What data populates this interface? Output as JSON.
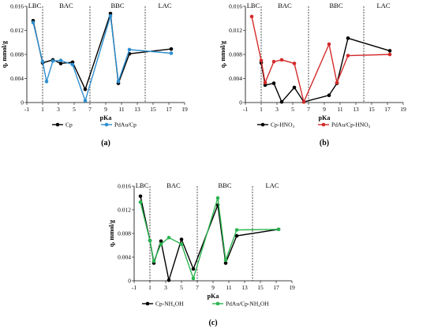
{
  "chart_data": [
    {
      "type": "line",
      "panel_label": "(a)",
      "xlabel": "pKa",
      "ylabel": "q, mmol/g",
      "xlim": [
        -1,
        19
      ],
      "ylim": [
        0,
        0.016
      ],
      "x_ticks": [
        -1,
        1,
        3,
        5,
        7,
        9,
        11,
        13,
        15,
        17,
        19
      ],
      "y_ticks": [
        "0",
        "0.004",
        "0.008",
        "0.012",
        "0.016"
      ],
      "y_tick_values": [
        0,
        0.004,
        0.008,
        0.012,
        0.016
      ],
      "regions": [
        {
          "label": "LBC",
          "x_center": 0
        },
        {
          "label": "BAC",
          "x_center": 4
        },
        {
          "label": "BBC",
          "x_center": 10.5
        },
        {
          "label": "LAC",
          "x_center": 16.5
        }
      ],
      "dividers": [
        1,
        7,
        14
      ],
      "legend_position": "bottom",
      "series": [
        {
          "name": "Cp",
          "color": "#000000",
          "x": [
            -0.2,
            1.0,
            2.3,
            3.3,
            4.8,
            6.4,
            9.6,
            10.6,
            12.0,
            17.3
          ],
          "y": [
            0.0136,
            0.0066,
            0.0071,
            0.0065,
            0.0067,
            0.0022,
            0.0148,
            0.0032,
            0.0081,
            0.0089
          ]
        },
        {
          "name": "PdAu/Cp",
          "color": "#2e8fd0",
          "x": [
            -0.2,
            1.0,
            1.5,
            2.3,
            3.3,
            4.8,
            6.4,
            9.6,
            10.6,
            12.0,
            17.3
          ],
          "y": [
            0.0133,
            0.0068,
            0.0035,
            0.0069,
            0.007,
            0.0063,
            0.0003,
            0.0144,
            0.0035,
            0.0088,
            0.0082
          ]
        }
      ]
    },
    {
      "type": "line",
      "panel_label": "(b)",
      "xlabel": "pKa",
      "ylabel": "q, mmol/g",
      "xlim": [
        -1,
        19
      ],
      "ylim": [
        0,
        0.016
      ],
      "x_ticks": [
        -1,
        1,
        3,
        5,
        7,
        9,
        11,
        13,
        15,
        17,
        19
      ],
      "y_ticks": [
        "0",
        "0.004",
        "0.008",
        "0.012",
        "0.016"
      ],
      "y_tick_values": [
        0,
        0.004,
        0.008,
        0.012,
        0.016
      ],
      "regions": [
        {
          "label": "LBC",
          "x_center": 0
        },
        {
          "label": "BAC",
          "x_center": 4
        },
        {
          "label": "BBC",
          "x_center": 10.5
        },
        {
          "label": "LAC",
          "x_center": 16.5
        }
      ],
      "dividers": [
        1,
        7,
        14
      ],
      "legend_position": "bottom",
      "series": [
        {
          "name": "Cp-HNO₃",
          "color": "#000000",
          "x": [
            1.0,
            1.5,
            2.6,
            3.6,
            5.2,
            6.4,
            9.6,
            10.6,
            12.0,
            17.3
          ],
          "y": [
            0.0066,
            0.0029,
            0.0032,
            0.0001,
            0.0025,
            0.0001,
            0.0012,
            0.0032,
            0.0107,
            0.0086
          ]
        },
        {
          "name": "PdAu/Cp-HNO₃",
          "color": "#d42a2a",
          "x": [
            -0.2,
            1.0,
            1.5,
            2.6,
            3.6,
            5.2,
            6.4,
            9.6,
            10.6,
            12.0,
            17.3
          ],
          "y": [
            0.0143,
            0.007,
            0.0033,
            0.0068,
            0.0071,
            0.0065,
            0.0001,
            0.0097,
            0.0033,
            0.0078,
            0.008
          ]
        }
      ]
    },
    {
      "type": "line",
      "panel_label": "(c)",
      "xlabel": "pKa",
      "ylabel": "q, mmol/g",
      "xlim": [
        -1,
        19
      ],
      "ylim": [
        0,
        0.016
      ],
      "x_ticks": [
        -1,
        1,
        3,
        5,
        7,
        9,
        11,
        13,
        15,
        17,
        19
      ],
      "y_ticks": [
        "0",
        "0.004",
        "0.008",
        "0.012",
        "0.016"
      ],
      "y_tick_values": [
        0,
        0.004,
        0.008,
        0.012,
        0.016
      ],
      "regions": [
        {
          "label": "LBC",
          "x_center": 0
        },
        {
          "label": "BAC",
          "x_center": 4
        },
        {
          "label": "BBC",
          "x_center": 10.5
        },
        {
          "label": "LAC",
          "x_center": 16.5
        }
      ],
      "dividers": [
        1,
        7,
        14
      ],
      "legend_position": "bottom",
      "series": [
        {
          "name": "Cp-NH₄OH",
          "color": "#000000",
          "x": [
            -0.2,
            1.0,
            1.5,
            2.4,
            3.4,
            5.0,
            6.5,
            9.6,
            10.6,
            12.0,
            17.3
          ],
          "y": [
            0.0143,
            0.0068,
            0.003,
            0.0067,
            0.0001,
            0.007,
            0.002,
            0.0128,
            0.003,
            0.0076,
            0.0087
          ]
        },
        {
          "name": "PdAu/Cp-NH₄OH",
          "color": "#2bb54f",
          "x": [
            -0.2,
            1.0,
            1.5,
            2.4,
            3.4,
            5.0,
            6.5,
            9.6,
            10.6,
            12.0,
            17.3
          ],
          "y": [
            0.0133,
            0.0068,
            0.0033,
            0.0062,
            0.0073,
            0.0062,
            0.0004,
            0.014,
            0.0035,
            0.0086,
            0.0087
          ]
        }
      ]
    }
  ]
}
